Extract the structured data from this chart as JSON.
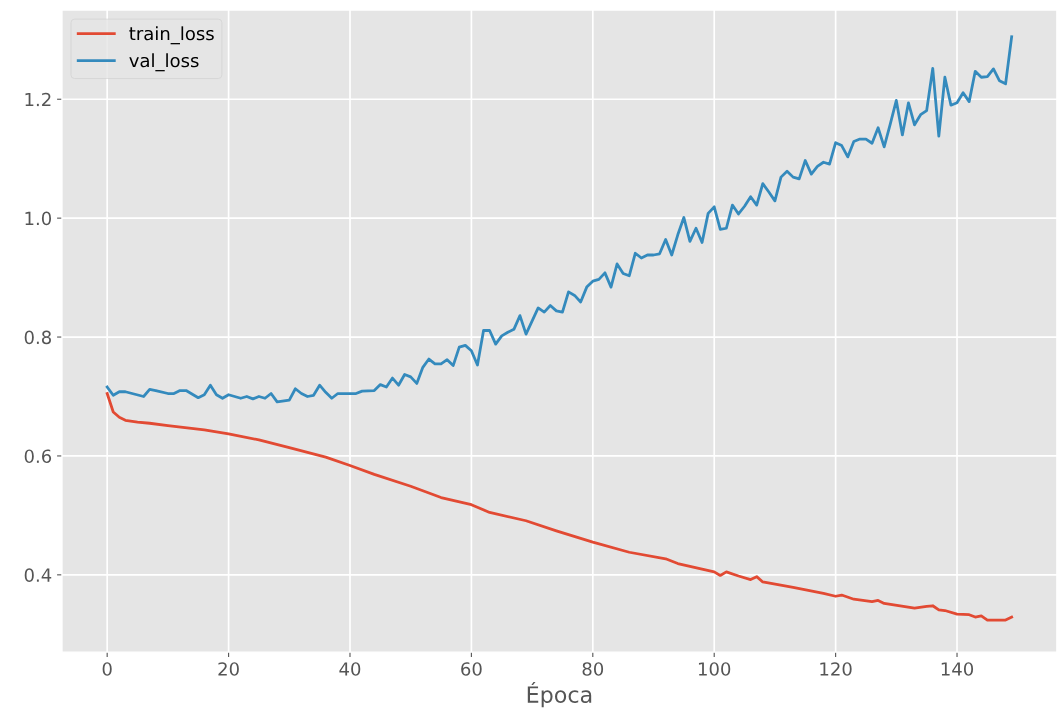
{
  "chart_data": {
    "type": "line",
    "xlabel": "Época",
    "series": [
      {
        "name": "train_loss",
        "color": "#e24a33",
        "x": [
          0,
          1,
          2,
          3,
          5,
          7,
          10,
          16,
          20,
          25,
          30,
          36,
          40,
          44,
          50,
          55,
          60,
          63,
          69,
          74,
          80,
          86,
          92,
          94,
          100,
          101,
          102,
          104,
          106,
          107,
          108,
          113,
          118,
          120,
          121,
          123,
          126,
          127,
          128,
          133,
          135,
          136,
          137,
          138,
          140,
          142,
          143,
          144,
          145,
          148,
          149
        ],
        "values": [
          0.705,
          0.674,
          0.665,
          0.66,
          0.657,
          0.655,
          0.651,
          0.644,
          0.637,
          0.627,
          0.614,
          0.598,
          0.584,
          0.569,
          0.549,
          0.53,
          0.518,
          0.505,
          0.491,
          0.474,
          0.455,
          0.438,
          0.427,
          0.419,
          0.405,
          0.399,
          0.405,
          0.398,
          0.392,
          0.397,
          0.388,
          0.379,
          0.369,
          0.364,
          0.366,
          0.359,
          0.355,
          0.357,
          0.352,
          0.344,
          0.347,
          0.348,
          0.341,
          0.34,
          0.334,
          0.333,
          0.329,
          0.331,
          0.324,
          0.324,
          0.329
        ]
      },
      {
        "name": "val_loss",
        "color": "#348abd",
        "x": [
          0,
          1,
          2,
          3,
          6,
          7,
          8,
          10,
          11,
          12,
          13,
          15,
          16,
          17,
          18,
          19,
          20,
          22,
          23,
          24,
          25,
          26,
          27,
          28,
          30,
          31,
          32,
          33,
          34,
          35,
          36,
          37,
          38,
          41,
          42,
          44,
          45,
          46,
          47,
          48,
          49,
          50,
          51,
          52,
          53,
          54,
          55,
          56,
          57,
          58,
          59,
          60,
          61,
          62,
          63,
          64,
          65,
          66,
          67,
          68,
          69,
          71,
          72,
          73,
          74,
          75,
          76,
          77,
          78,
          79,
          80,
          81,
          82,
          83,
          84,
          85,
          86,
          87,
          88,
          89,
          90,
          91,
          92,
          93,
          94,
          95,
          96,
          97,
          98,
          99,
          100,
          101,
          102,
          103,
          104,
          105,
          106,
          107,
          108,
          109,
          110,
          111,
          112,
          113,
          114,
          115,
          116,
          117,
          118,
          119,
          120,
          121,
          122,
          123,
          124,
          125,
          126,
          127,
          128,
          129,
          130,
          131,
          132,
          133,
          134,
          135,
          136,
          137,
          138,
          139,
          140,
          141,
          142,
          143,
          144,
          145,
          146,
          147,
          148,
          149
        ],
        "values": [
          0.716,
          0.702,
          0.708,
          0.708,
          0.7,
          0.712,
          0.71,
          0.705,
          0.705,
          0.71,
          0.71,
          0.698,
          0.703,
          0.719,
          0.703,
          0.697,
          0.703,
          0.697,
          0.7,
          0.696,
          0.7,
          0.697,
          0.705,
          0.691,
          0.694,
          0.713,
          0.705,
          0.7,
          0.702,
          0.719,
          0.707,
          0.697,
          0.705,
          0.705,
          0.709,
          0.71,
          0.72,
          0.716,
          0.731,
          0.719,
          0.737,
          0.733,
          0.722,
          0.749,
          0.763,
          0.755,
          0.755,
          0.762,
          0.752,
          0.783,
          0.786,
          0.777,
          0.753,
          0.811,
          0.811,
          0.788,
          0.802,
          0.808,
          0.813,
          0.836,
          0.805,
          0.849,
          0.842,
          0.853,
          0.844,
          0.842,
          0.876,
          0.87,
          0.859,
          0.884,
          0.894,
          0.897,
          0.908,
          0.884,
          0.923,
          0.907,
          0.903,
          0.941,
          0.933,
          0.938,
          0.938,
          0.94,
          0.964,
          0.938,
          0.972,
          1.001,
          0.961,
          0.983,
          0.959,
          1.008,
          1.019,
          0.981,
          0.983,
          1.022,
          1.007,
          1.02,
          1.036,
          1.022,
          1.058,
          1.044,
          1.029,
          1.069,
          1.079,
          1.069,
          1.066,
          1.097,
          1.074,
          1.087,
          1.094,
          1.091,
          1.127,
          1.122,
          1.103,
          1.129,
          1.133,
          1.133,
          1.126,
          1.152,
          1.12,
          1.158,
          1.198,
          1.14,
          1.194,
          1.157,
          1.174,
          1.181,
          1.252,
          1.138,
          1.237,
          1.19,
          1.194,
          1.211,
          1.196,
          1.247,
          1.237,
          1.238,
          1.251,
          1.231,
          1.226,
          1.305
        ]
      }
    ],
    "xlim": [
      -7.45,
      156.45
    ],
    "ylim": [
      0.27,
      1.35
    ],
    "xticks": [
      0,
      20,
      40,
      60,
      80,
      100,
      120,
      140
    ],
    "yticks": [
      0.4,
      0.6,
      0.8,
      {
        "value": 1.0,
        "label": "1.0"
      },
      1.2
    ],
    "grid": true,
    "legend": "top left"
  }
}
